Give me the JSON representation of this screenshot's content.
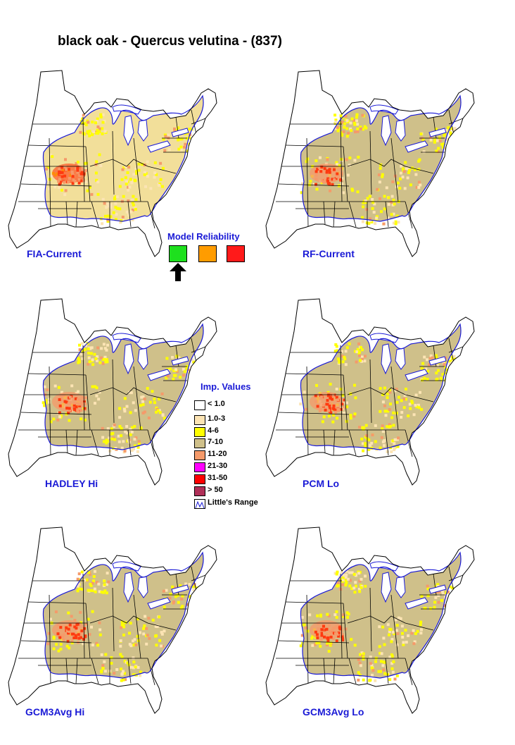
{
  "title": "black oak - Quercus velutina - (837)",
  "reliability": {
    "title": "Model Reliability",
    "swatches": [
      {
        "name": "high",
        "color": "#1ee01e",
        "selected": true
      },
      {
        "name": "medium",
        "color": "#ff9c00",
        "selected": false
      },
      {
        "name": "low",
        "color": "#ff1a1a",
        "selected": false
      }
    ]
  },
  "legend": {
    "title": "Imp. Values",
    "items": [
      {
        "label": "< 1.0",
        "color": "#ffffff"
      },
      {
        "label": "1.0-3",
        "color": "#fce4b4"
      },
      {
        "label": "4-6",
        "color": "#ffff00"
      },
      {
        "label": "7-10",
        "color": "#cfc08a"
      },
      {
        "label": "11-20",
        "color": "#f59a6a"
      },
      {
        "label": "21-30",
        "color": "#ff00ff"
      },
      {
        "label": "31-50",
        "color": "#ff0000"
      },
      {
        "label": "> 50",
        "color": "#b03058"
      },
      {
        "label": "Little's Range",
        "color": "#1a1ad6"
      }
    ]
  },
  "panels": [
    {
      "id": "fia-current",
      "label": "FIA-Current",
      "hot": "high"
    },
    {
      "id": "rf-current",
      "label": "RF-Current",
      "hot": "mid"
    },
    {
      "id": "hadley-hi",
      "label": "HADLEY Hi",
      "hot": "mid"
    },
    {
      "id": "pcm-lo",
      "label": "PCM Lo",
      "hot": "mid"
    },
    {
      "id": "gcm3avg-hi",
      "label": "GCM3Avg Hi",
      "hot": "mid"
    },
    {
      "id": "gcm3avg-lo",
      "label": "GCM3Avg Lo",
      "hot": "mid"
    }
  ],
  "colors": {
    "label_blue": "#1a1ad6",
    "range_line": "#1a1ad6",
    "tan": "#cfc08a",
    "yellow": "#ffff00",
    "salmon": "#f59a6a",
    "red": "#ff3a10"
  }
}
